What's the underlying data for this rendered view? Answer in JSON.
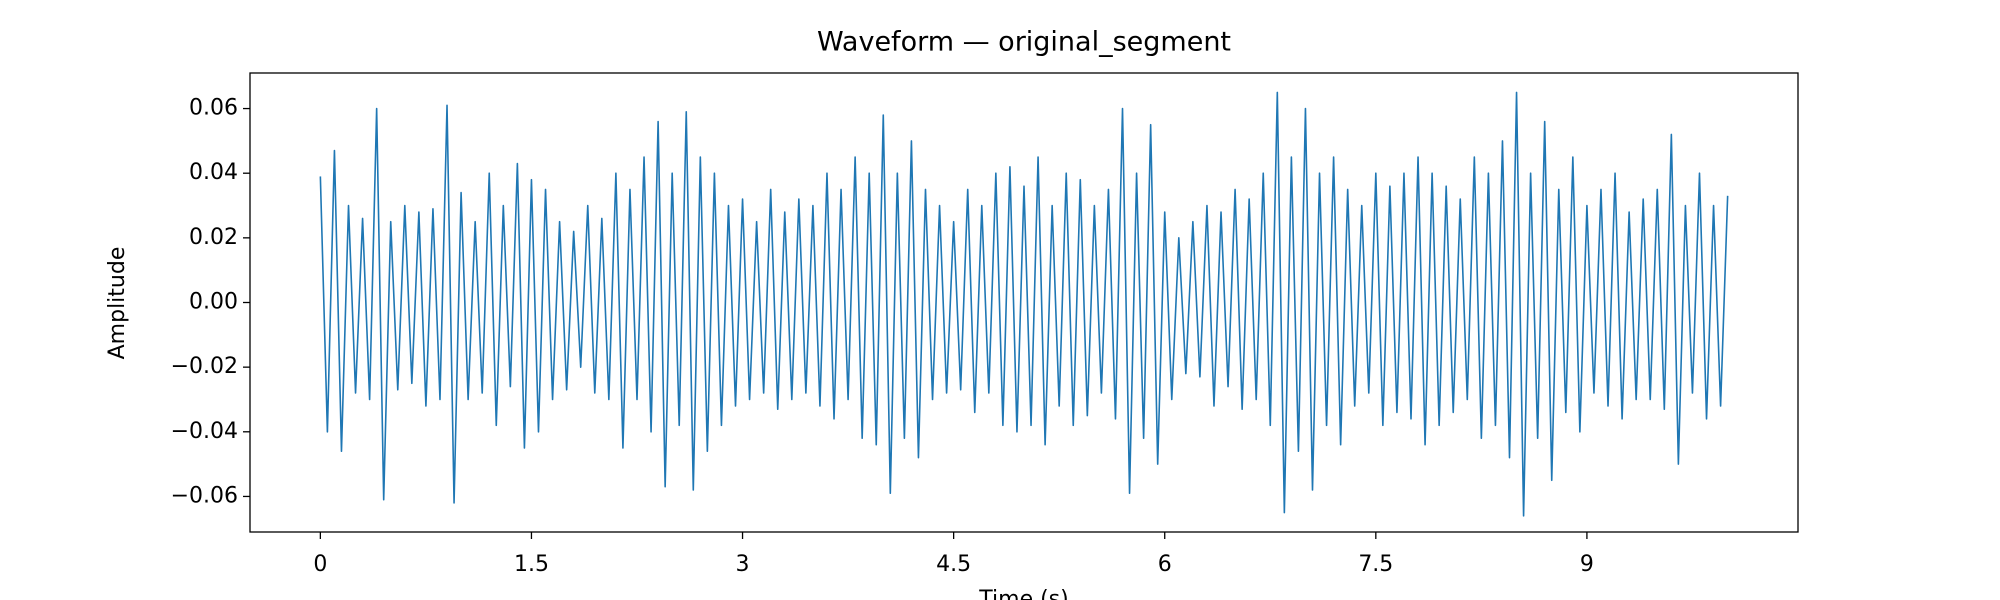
{
  "chart_data": {
    "type": "line",
    "title": "Waveform — original_segment",
    "xlabel": "Time (s)",
    "ylabel": "Amplitude",
    "color": "#1f77b4",
    "grid": false,
    "xlim": [
      -0.5,
      10.5
    ],
    "ylim": [
      -0.071,
      0.071
    ],
    "xticks": [
      0,
      1.5,
      3,
      4.5,
      6,
      7.5,
      9
    ],
    "yticks": [
      {
        "value": -0.06,
        "label": "−0.06"
      },
      {
        "value": -0.04,
        "label": "−0.04"
      },
      {
        "value": -0.02,
        "label": "−0.02"
      },
      {
        "value": 0,
        "label": "0.00"
      },
      0.02,
      0.04,
      0.06
    ],
    "x": [
      0,
      0.05,
      0.1,
      0.15,
      0.2,
      0.25,
      0.3,
      0.35,
      0.4,
      0.45,
      0.5,
      0.55,
      0.6,
      0.65,
      0.7,
      0.75,
      0.8,
      0.85,
      0.9,
      0.95,
      1,
      1.05,
      1.1,
      1.15,
      1.2,
      1.25,
      1.3,
      1.35,
      1.4,
      1.45,
      1.5,
      1.55,
      1.6,
      1.65,
      1.7,
      1.75,
      1.8,
      1.85,
      1.9,
      1.95,
      2,
      2.05,
      2.1,
      2.15,
      2.2,
      2.25,
      2.3,
      2.35,
      2.4,
      2.45,
      2.5,
      2.55,
      2.6,
      2.65,
      2.7,
      2.75,
      2.8,
      2.85,
      2.9,
      2.95,
      3,
      3.05,
      3.1,
      3.15,
      3.2,
      3.25,
      3.3,
      3.35,
      3.4,
      3.45,
      3.5,
      3.55,
      3.6,
      3.65,
      3.7,
      3.75,
      3.8,
      3.85,
      3.9,
      3.95,
      4,
      4.05,
      4.1,
      4.15,
      4.2,
      4.25,
      4.3,
      4.35,
      4.4,
      4.45,
      4.5,
      4.55,
      4.6,
      4.65,
      4.7,
      4.75,
      4.8,
      4.85,
      4.9,
      4.95,
      5,
      5.05,
      5.1,
      5.15,
      5.2,
      5.25,
      5.3,
      5.35,
      5.4,
      5.45,
      5.5,
      5.55,
      5.6,
      5.65,
      5.7,
      5.75,
      5.8,
      5.85,
      5.9,
      5.95,
      6,
      6.05,
      6.1,
      6.15,
      6.2,
      6.25,
      6.3,
      6.35,
      6.4,
      6.45,
      6.5,
      6.55,
      6.6,
      6.65,
      6.7,
      6.75,
      6.8,
      6.85,
      6.9,
      6.95,
      7,
      7.05,
      7.1,
      7.15,
      7.2,
      7.25,
      7.3,
      7.35,
      7.4,
      7.45,
      7.5,
      7.55,
      7.6,
      7.65,
      7.7,
      7.75,
      7.8,
      7.85,
      7.9,
      7.95,
      8,
      8.05,
      8.1,
      8.15,
      8.2,
      8.25,
      8.3,
      8.35,
      8.4,
      8.45,
      8.5,
      8.55,
      8.6,
      8.65,
      8.7,
      8.75,
      8.8,
      8.85,
      8.9,
      8.95,
      9,
      9.05,
      9.1,
      9.15,
      9.2,
      9.25,
      9.3,
      9.35,
      9.4,
      9.45,
      9.5,
      9.55,
      9.6,
      9.65,
      9.7,
      9.75,
      9.8,
      9.85,
      9.9,
      9.95,
      10
    ],
    "values": [
      0.039,
      -0.04,
      0.047,
      -0.046,
      0.03,
      -0.028,
      0.026,
      -0.03,
      0.06,
      -0.061,
      0.025,
      -0.027,
      0.03,
      -0.025,
      0.028,
      -0.032,
      0.029,
      -0.03,
      0.061,
      -0.062,
      0.034,
      -0.03,
      0.025,
      -0.028,
      0.04,
      -0.038,
      0.03,
      -0.026,
      0.043,
      -0.045,
      0.038,
      -0.04,
      0.035,
      -0.03,
      0.025,
      -0.027,
      0.022,
      -0.02,
      0.03,
      -0.028,
      0.026,
      -0.03,
      0.04,
      -0.045,
      0.035,
      -0.03,
      0.045,
      -0.04,
      0.056,
      -0.057,
      0.04,
      -0.038,
      0.059,
      -0.058,
      0.045,
      -0.046,
      0.04,
      -0.038,
      0.03,
      -0.032,
      0.032,
      -0.03,
      0.025,
      -0.028,
      0.035,
      -0.033,
      0.028,
      -0.03,
      0.032,
      -0.028,
      0.03,
      -0.032,
      0.04,
      -0.036,
      0.035,
      -0.03,
      0.045,
      -0.042,
      0.04,
      -0.044,
      0.058,
      -0.059,
      0.04,
      -0.042,
      0.05,
      -0.048,
      0.035,
      -0.03,
      0.03,
      -0.028,
      0.025,
      -0.027,
      0.035,
      -0.034,
      0.03,
      -0.028,
      0.04,
      -0.038,
      0.042,
      -0.04,
      0.036,
      -0.038,
      0.045,
      -0.044,
      0.03,
      -0.032,
      0.04,
      -0.038,
      0.038,
      -0.035,
      0.03,
      -0.028,
      0.035,
      -0.036,
      0.06,
      -0.059,
      0.04,
      -0.042,
      0.055,
      -0.05,
      0.028,
      -0.03,
      0.02,
      -0.022,
      0.025,
      -0.023,
      0.03,
      -0.032,
      0.028,
      -0.026,
      0.035,
      -0.033,
      0.032,
      -0.03,
      0.04,
      -0.038,
      0.065,
      -0.065,
      0.045,
      -0.046,
      0.06,
      -0.058,
      0.04,
      -0.038,
      0.045,
      -0.044,
      0.035,
      -0.032,
      0.03,
      -0.028,
      0.04,
      -0.038,
      0.036,
      -0.034,
      0.04,
      -0.036,
      0.045,
      -0.044,
      0.04,
      -0.038,
      0.036,
      -0.034,
      0.032,
      -0.03,
      0.045,
      -0.042,
      0.04,
      -0.038,
      0.05,
      -0.048,
      0.065,
      -0.066,
      0.04,
      -0.042,
      0.056,
      -0.055,
      0.035,
      -0.034,
      0.045,
      -0.04,
      0.03,
      -0.028,
      0.035,
      -0.032,
      0.04,
      -0.036,
      0.028,
      -0.03,
      0.032,
      -0.03,
      0.035,
      -0.033,
      0.052,
      -0.05,
      0.03,
      -0.028,
      0.04,
      -0.036,
      0.03,
      -0.032,
      0.033
    ]
  }
}
